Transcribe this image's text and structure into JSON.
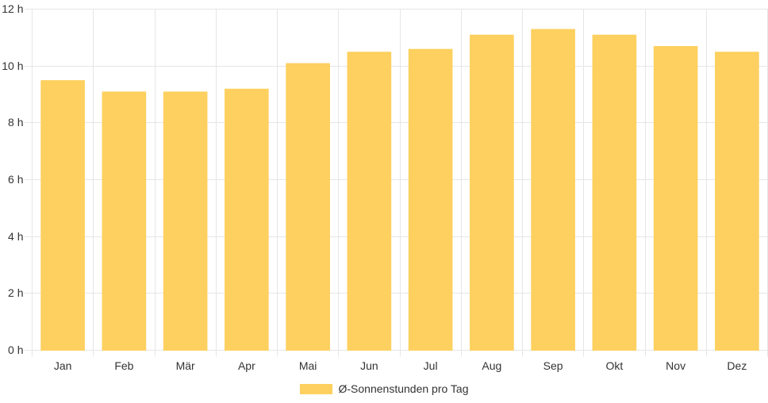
{
  "chart_data": {
    "type": "bar",
    "title": "",
    "xlabel": "",
    "ylabel": "",
    "categories": [
      "Jan",
      "Feb",
      "Mär",
      "Apr",
      "Mai",
      "Jun",
      "Jul",
      "Aug",
      "Sep",
      "Okt",
      "Nov",
      "Dez"
    ],
    "series": [
      {
        "name": "Ø-Sonnenstunden pro Tag",
        "values": [
          9.5,
          9.1,
          9.1,
          9.2,
          10.1,
          10.5,
          10.6,
          11.1,
          11.3,
          11.1,
          10.7,
          10.5
        ]
      }
    ],
    "ylim": [
      0,
      12
    ],
    "ytick_step": 2,
    "ytick_labels": [
      "0 h",
      "2 h",
      "4 h",
      "6 h",
      "8 h",
      "10 h",
      "12 h"
    ],
    "ytick_suffix": " h",
    "grid": "both",
    "legend_position": "bottom"
  },
  "legend": {
    "label": "Ø-Sonnenstunden pro Tag"
  },
  "colors": {
    "bar": "#FDD05F",
    "grid": "#E6E6E6",
    "text": "#333333",
    "background": "#FFFFFF"
  }
}
